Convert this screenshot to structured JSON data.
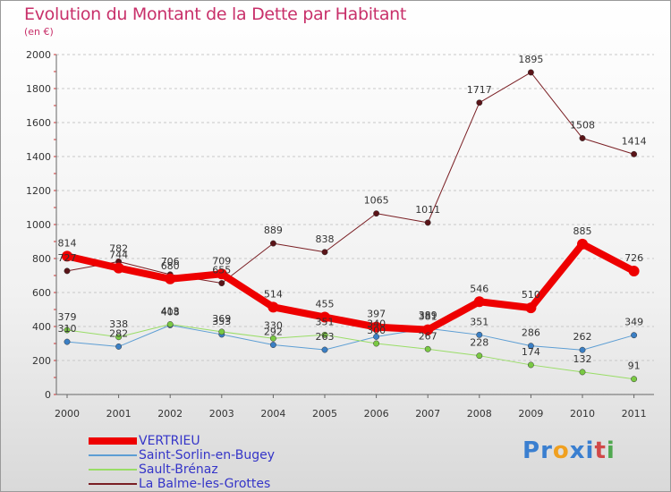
{
  "header": {
    "title": "Evolution du Montant de la Dette par Habitant",
    "subtitle": "(en €)"
  },
  "logo": {
    "letters": [
      "P",
      "r",
      "o",
      "x",
      "i",
      "t",
      "i"
    ],
    "colors": [
      "#3a7fd0",
      "#3a7fd0",
      "#f0a020",
      "#3a7fd0",
      "#3a7fd0",
      "#d04848",
      "#50a850"
    ]
  },
  "chart_data": {
    "type": "line",
    "categories": [
      "2000",
      "2001",
      "2002",
      "2003",
      "2004",
      "2005",
      "2006",
      "2007",
      "2008",
      "2009",
      "2010",
      "2011"
    ],
    "ylim": [
      0,
      2000
    ],
    "yticks": [
      "0",
      "200",
      "400",
      "600",
      "800",
      "1000",
      "1200",
      "1400",
      "1600",
      "1800",
      "2000"
    ],
    "grid": "horizontal dashed",
    "legend_position": "bottom-left",
    "series": [
      {
        "name": "La Balme-les-Grottes",
        "color": "#7a1f24",
        "marker": "#5a1418",
        "width": 1,
        "values": [
          727,
          782,
          706,
          655,
          889,
          838,
          1065,
          1011,
          1717,
          1895,
          1508,
          1414
        ],
        "labels": [
          "727",
          "782",
          "706",
          "655",
          "889",
          "838",
          "1065",
          "1011",
          "1717",
          "1895",
          "1508",
          "1414"
        ]
      },
      {
        "name": "Saint-Sorlin-en-Bugey",
        "color": "#5d9ed4",
        "marker": "#3b7fc4",
        "width": 1,
        "values": [
          310,
          282,
          408,
          353,
          292,
          263,
          340,
          389,
          351,
          286,
          262,
          349
        ],
        "labels": [
          "310",
          "282",
          "408",
          "353",
          "292",
          "263",
          "340",
          "389",
          "351",
          "286",
          "262",
          "349"
        ]
      },
      {
        "name": "Sault-Brénaz",
        "color": "#99dd66",
        "marker": "#7ac943",
        "width": 1,
        "values": [
          379,
          338,
          413,
          369,
          330,
          351,
          300,
          267,
          228,
          174,
          132,
          91
        ],
        "labels": [
          "379",
          "338",
          "413",
          "369",
          "330",
          "351",
          "300",
          "267",
          "228",
          "174",
          "132",
          "91"
        ]
      },
      {
        "name": "VERTRIEU",
        "color": "#ee0000",
        "marker": "#ee0000",
        "width": 8,
        "values": [
          814,
          744,
          680,
          709,
          514,
          455,
          397,
          381,
          546,
          510,
          885,
          726
        ],
        "labels": [
          "814",
          "744",
          "680",
          "709",
          "514",
          "455",
          "397",
          "381",
          "546",
          "510",
          "885",
          "726"
        ]
      }
    ],
    "legend": [
      {
        "name": "VERTRIEU",
        "color": "#ee0000",
        "width": 8
      },
      {
        "name": "Saint-Sorlin-en-Bugey",
        "color": "#5d9ed4",
        "width": 2
      },
      {
        "name": "Sault-Brénaz",
        "color": "#99dd66",
        "width": 2
      },
      {
        "name": "La Balme-les-Grottes",
        "color": "#7a1f24",
        "width": 2
      }
    ]
  }
}
